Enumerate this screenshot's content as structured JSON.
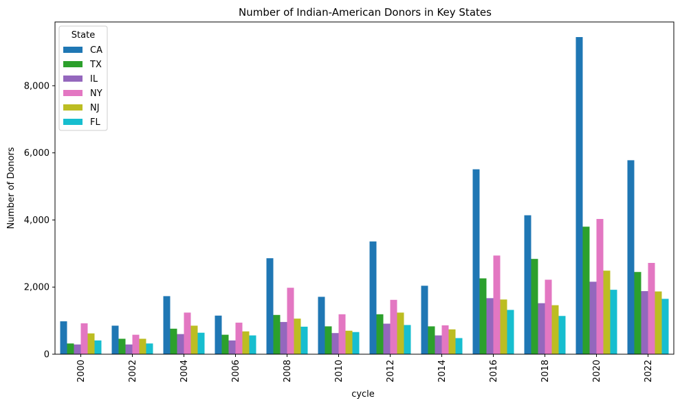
{
  "chart_data": {
    "type": "bar",
    "title": "Number of Indian-American Donors in Key States",
    "xlabel": "cycle",
    "ylabel": "Number of Donors",
    "ylim": [
      0,
      9900
    ],
    "yticks": [
      0,
      2000,
      4000,
      6000,
      8000
    ],
    "ytick_labels": [
      "0",
      "2,000",
      "4,000",
      "6,000",
      "8,000"
    ],
    "categories": [
      "2000",
      "2002",
      "2004",
      "2006",
      "2008",
      "2010",
      "2012",
      "2014",
      "2016",
      "2018",
      "2020",
      "2022"
    ],
    "legend": {
      "title": "State",
      "placement": "top-left"
    },
    "series": [
      {
        "name": "CA",
        "color": "#1f77b4",
        "values": [
          980,
          850,
          1730,
          1150,
          2860,
          1710,
          3360,
          2040,
          5510,
          4140,
          9450,
          5780
        ]
      },
      {
        "name": "TX",
        "color": "#2ca02c",
        "values": [
          320,
          460,
          760,
          580,
          1170,
          830,
          1190,
          830,
          2260,
          2840,
          3800,
          2450
        ]
      },
      {
        "name": "IL",
        "color": "#9467bd",
        "values": [
          290,
          290,
          600,
          410,
          960,
          630,
          910,
          560,
          1670,
          1520,
          2160,
          1880
        ]
      },
      {
        "name": "NY",
        "color": "#e377c2",
        "values": [
          920,
          580,
          1240,
          940,
          1980,
          1190,
          1620,
          860,
          2940,
          2220,
          4030,
          2720
        ]
      },
      {
        "name": "NJ",
        "color": "#bcbd22",
        "values": [
          620,
          460,
          850,
          680,
          1060,
          700,
          1240,
          740,
          1630,
          1460,
          2490,
          1870
        ]
      },
      {
        "name": "FL",
        "color": "#17becf",
        "values": [
          410,
          320,
          640,
          560,
          820,
          660,
          870,
          480,
          1320,
          1140,
          1920,
          1650
        ]
      }
    ]
  }
}
